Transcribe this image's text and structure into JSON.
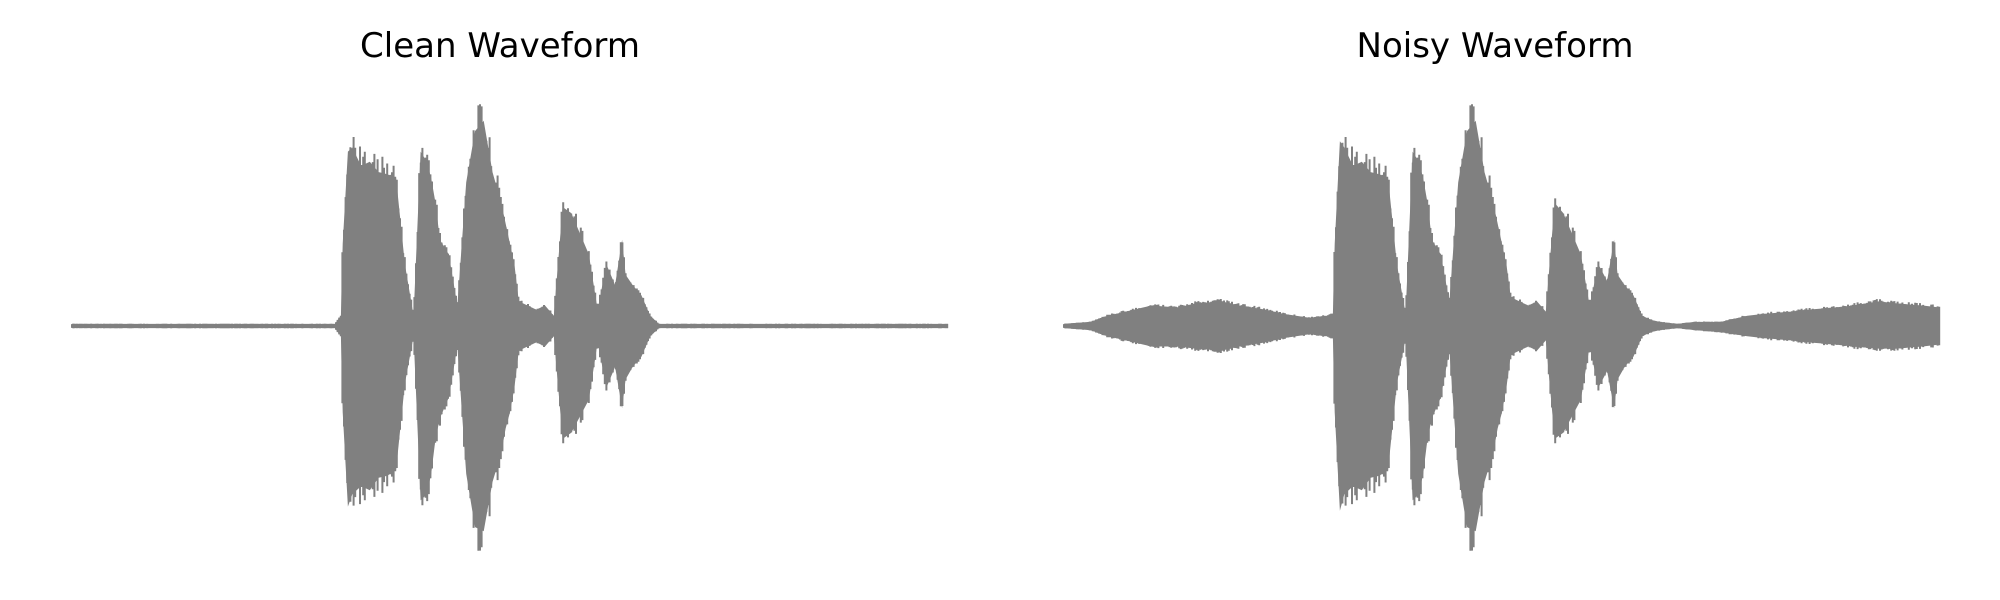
{
  "colors": {
    "waveform": "#808080",
    "background": "#ffffff"
  },
  "chart_data": [
    {
      "type": "area",
      "title": "Clean Waveform",
      "xlabel": "",
      "ylabel": "",
      "axes_visible": false,
      "grid": false,
      "x_range": [
        0,
        1
      ],
      "y_range": [
        -1,
        1
      ],
      "envelope": {
        "x": [
          0.0,
          0.05,
          0.1,
          0.15,
          0.2,
          0.25,
          0.3,
          0.307,
          0.309,
          0.315,
          0.32,
          0.33,
          0.34,
          0.35,
          0.36,
          0.37,
          0.38,
          0.39,
          0.398,
          0.405,
          0.41,
          0.415,
          0.42,
          0.43,
          0.44,
          0.45,
          0.46,
          0.47,
          0.48,
          0.49,
          0.495,
          0.5,
          0.505,
          0.51,
          0.52,
          0.53,
          0.54,
          0.55,
          0.56,
          0.57,
          0.58,
          0.59,
          0.6,
          0.61,
          0.62,
          0.628,
          0.632,
          0.64,
          0.65,
          0.66,
          0.67,
          0.675,
          0.68,
          0.69,
          0.7,
          0.71,
          0.72,
          0.73,
          0.75,
          0.8,
          0.85,
          0.9,
          0.95,
          1.0
        ],
        "upper": [
          0.01,
          0.01,
          0.01,
          0.01,
          0.01,
          0.01,
          0.01,
          0.05,
          0.4,
          0.85,
          0.87,
          0.78,
          0.8,
          0.75,
          0.74,
          0.72,
          0.3,
          0.05,
          0.85,
          0.8,
          0.72,
          0.6,
          0.42,
          0.35,
          0.1,
          0.7,
          0.95,
          1.0,
          0.75,
          0.6,
          0.5,
          0.4,
          0.3,
          0.12,
          0.1,
          0.08,
          0.1,
          0.05,
          0.58,
          0.55,
          0.45,
          0.35,
          0.08,
          0.3,
          0.2,
          0.42,
          0.25,
          0.2,
          0.15,
          0.05,
          0.01,
          0.01,
          0.01,
          0.01,
          0.01,
          0.01,
          0.01,
          0.01,
          0.01,
          0.01,
          0.01,
          0.01,
          0.01,
          0.01
        ],
        "lower": [
          -0.01,
          -0.01,
          -0.01,
          -0.01,
          -0.01,
          -0.01,
          -0.01,
          -0.05,
          -0.42,
          -0.88,
          -0.82,
          -0.78,
          -0.8,
          -0.74,
          -0.73,
          -0.7,
          -0.28,
          -0.05,
          -0.85,
          -0.82,
          -0.72,
          -0.55,
          -0.45,
          -0.35,
          -0.1,
          -0.72,
          -0.98,
          -1.0,
          -0.76,
          -0.62,
          -0.5,
          -0.42,
          -0.3,
          -0.12,
          -0.1,
          -0.08,
          -0.1,
          -0.05,
          -0.55,
          -0.52,
          -0.44,
          -0.36,
          -0.08,
          -0.3,
          -0.2,
          -0.4,
          -0.26,
          -0.2,
          -0.15,
          -0.05,
          -0.01,
          -0.01,
          -0.01,
          -0.01,
          -0.01,
          -0.01,
          -0.01,
          -0.01,
          -0.01,
          -0.01,
          -0.01,
          -0.01,
          -0.01,
          -0.01
        ]
      }
    },
    {
      "type": "area",
      "title": "Noisy Waveform",
      "xlabel": "",
      "ylabel": "",
      "axes_visible": false,
      "grid": false,
      "x_range": [
        0,
        1
      ],
      "y_range": [
        -1,
        1
      ],
      "envelope": {
        "x": [
          0.0,
          0.03,
          0.05,
          0.08,
          0.1,
          0.13,
          0.15,
          0.18,
          0.2,
          0.23,
          0.25,
          0.28,
          0.3,
          0.307,
          0.309,
          0.315,
          0.32,
          0.33,
          0.34,
          0.35,
          0.36,
          0.37,
          0.38,
          0.39,
          0.398,
          0.405,
          0.41,
          0.415,
          0.42,
          0.43,
          0.44,
          0.45,
          0.46,
          0.47,
          0.48,
          0.49,
          0.495,
          0.5,
          0.505,
          0.51,
          0.52,
          0.53,
          0.54,
          0.55,
          0.56,
          0.57,
          0.58,
          0.59,
          0.6,
          0.61,
          0.62,
          0.628,
          0.632,
          0.64,
          0.65,
          0.66,
          0.67,
          0.68,
          0.7,
          0.72,
          0.75,
          0.78,
          0.8,
          0.83,
          0.85,
          0.88,
          0.9,
          0.93,
          0.95,
          0.98,
          1.0
        ],
        "upper": [
          0.01,
          0.02,
          0.05,
          0.08,
          0.1,
          0.09,
          0.11,
          0.12,
          0.1,
          0.08,
          0.06,
          0.04,
          0.05,
          0.06,
          0.4,
          0.9,
          0.87,
          0.78,
          0.8,
          0.75,
          0.74,
          0.72,
          0.3,
          0.06,
          0.85,
          0.8,
          0.72,
          0.6,
          0.42,
          0.35,
          0.12,
          0.7,
          0.95,
          1.0,
          0.75,
          0.6,
          0.5,
          0.4,
          0.3,
          0.14,
          0.12,
          0.1,
          0.12,
          0.07,
          0.6,
          0.55,
          0.45,
          0.35,
          0.1,
          0.3,
          0.22,
          0.42,
          0.25,
          0.2,
          0.15,
          0.05,
          0.03,
          0.02,
          0.01,
          0.02,
          0.02,
          0.05,
          0.06,
          0.07,
          0.08,
          0.09,
          0.1,
          0.12,
          0.11,
          0.1,
          0.09
        ],
        "lower": [
          -0.01,
          -0.02,
          -0.05,
          -0.08,
          -0.1,
          -0.1,
          -0.11,
          -0.12,
          -0.1,
          -0.08,
          -0.06,
          -0.04,
          -0.05,
          -0.06,
          -0.42,
          -0.9,
          -0.82,
          -0.78,
          -0.8,
          -0.74,
          -0.73,
          -0.7,
          -0.28,
          -0.06,
          -0.85,
          -0.82,
          -0.72,
          -0.55,
          -0.45,
          -0.35,
          -0.12,
          -0.72,
          -0.98,
          -1.0,
          -0.76,
          -0.62,
          -0.5,
          -0.42,
          -0.3,
          -0.14,
          -0.12,
          -0.1,
          -0.12,
          -0.07,
          -0.55,
          -0.52,
          -0.44,
          -0.36,
          -0.1,
          -0.3,
          -0.22,
          -0.4,
          -0.26,
          -0.2,
          -0.15,
          -0.05,
          -0.03,
          -0.02,
          -0.01,
          -0.02,
          -0.03,
          -0.05,
          -0.06,
          -0.07,
          -0.08,
          -0.09,
          -0.1,
          -0.11,
          -0.11,
          -0.1,
          -0.09
        ]
      }
    }
  ]
}
